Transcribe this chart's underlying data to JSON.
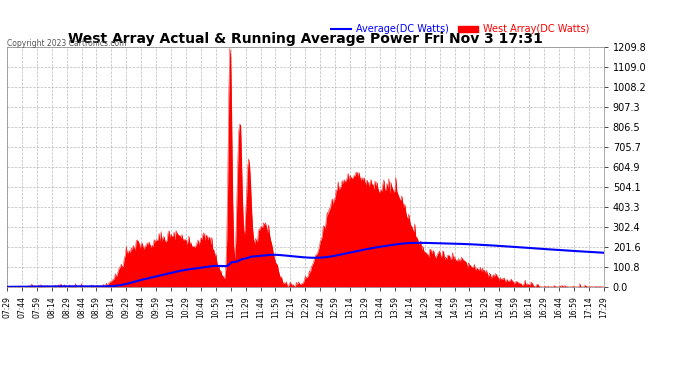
{
  "title": "West Array Actual & Running Average Power Fri Nov 3 17:31",
  "copyright": "Copyright 2023 Cartronics.com",
  "legend_avg": "Average(DC Watts)",
  "legend_west": "West Array(DC Watts)",
  "legend_avg_color": "#0000ff",
  "legend_west_color": "#ff0000",
  "bg_color": "#ffffff",
  "plot_bg_color": "#ffffff",
  "grid_color": "#aaaaaa",
  "title_color": "#000000",
  "yticks": [
    0.0,
    100.8,
    201.6,
    302.4,
    403.3,
    504.1,
    604.9,
    705.7,
    806.5,
    907.3,
    1008.2,
    1109.0,
    1209.8
  ],
  "ymax": 1209.8,
  "xstart_hour": 7,
  "xstart_min": 29,
  "xend_hour": 17,
  "xend_min": 29,
  "xtick_interval_min": 15
}
